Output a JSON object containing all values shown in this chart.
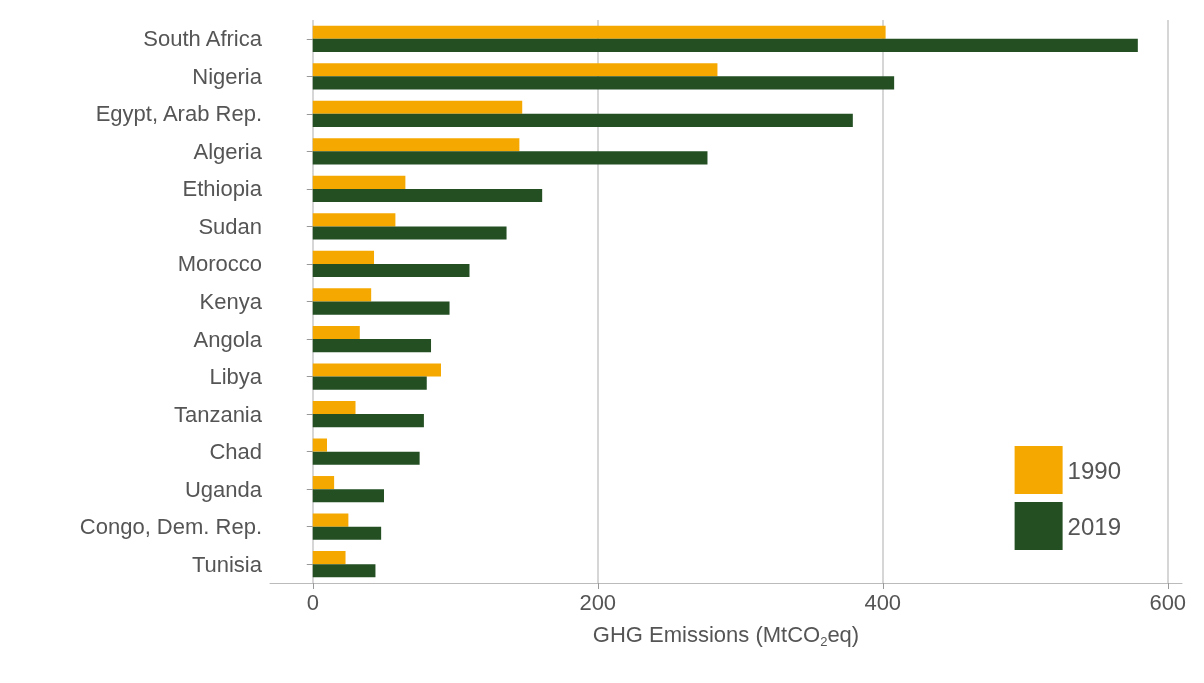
{
  "chart_data": {
    "type": "bar",
    "orientation": "horizontal",
    "xlabel": "GHG Emissions (MtCO$_{2}$eq)",
    "categories": [
      "South Africa",
      "Nigeria",
      "Egypt, Arab Rep.",
      "Algeria",
      "Ethiopia",
      "Sudan",
      "Morocco",
      "Kenya",
      "Angola",
      "Libya",
      "Tanzania",
      "Chad",
      "Uganda",
      "Congo, Dem. Rep.",
      "Tunisia"
    ],
    "series": [
      {
        "name": "1990",
        "color": "#f5a800",
        "values": [
          402,
          284,
          147,
          145,
          65,
          58,
          43,
          41,
          33,
          90,
          30,
          10,
          15,
          25,
          23
        ]
      },
      {
        "name": "2019",
        "color": "#234f22",
        "values": [
          579,
          408,
          379,
          277,
          161,
          136,
          110,
          96,
          83,
          80,
          78,
          75,
          50,
          48,
          44
        ]
      }
    ],
    "xlim": [
      -30,
      610
    ],
    "xticks": [
      0,
      200,
      400,
      600
    ],
    "grid": "x",
    "legend": "bottom right"
  }
}
